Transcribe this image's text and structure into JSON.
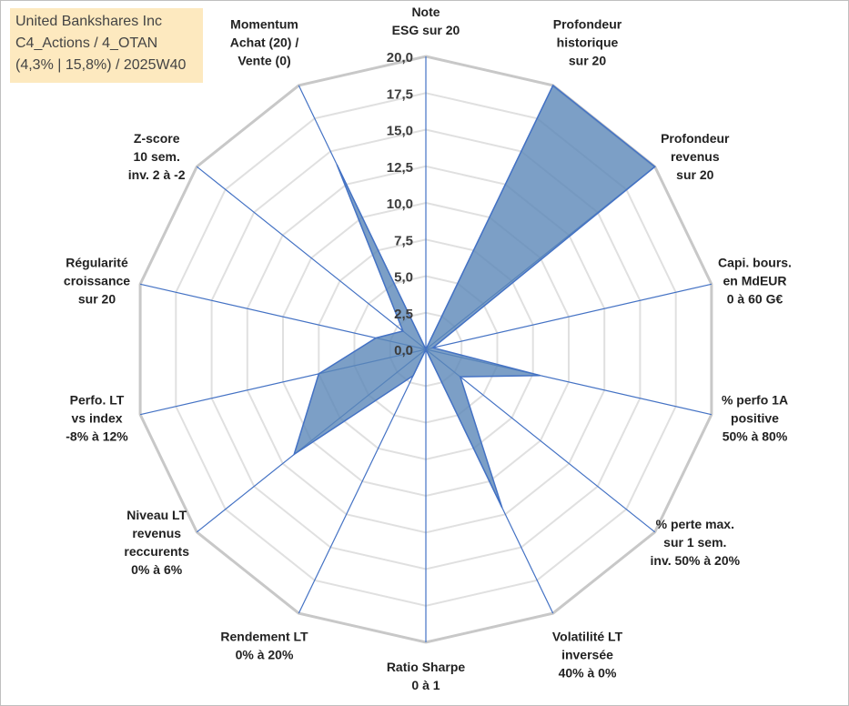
{
  "title_box": {
    "line1": "United Bankshares Inc",
    "line2": "C4_Actions / 4_OTAN",
    "line3": "(4,3% | 15,8%) / 2025W40"
  },
  "chart_data": {
    "type": "radar",
    "scale": {
      "min": 0,
      "max": 20,
      "step": 2.5
    },
    "tick_labels": [
      "0,0",
      "2,5",
      "5,0",
      "7,5",
      "10,0",
      "12,5",
      "15,0",
      "17,5",
      "20,0"
    ],
    "axes": [
      {
        "label": [
          "Note",
          "ESG sur 20"
        ],
        "value": 0
      },
      {
        "label": [
          "Profondeur",
          "historique",
          "sur 20"
        ],
        "value": 20
      },
      {
        "label": [
          "Profondeur",
          "revenus",
          "sur 20"
        ],
        "value": 20
      },
      {
        "label": [
          "Capi. bours.",
          "en MdEUR",
          "0 à 60 G€"
        ],
        "value": 0.5
      },
      {
        "label": [
          "% perfo 1A",
          "positive",
          "50% à 80%"
        ],
        "value": 8
      },
      {
        "label": [
          "% perte max.",
          "sur 1 sem.",
          "inv. 50% à 20%"
        ],
        "value": 3
      },
      {
        "label": [
          "Volatilité LT",
          "inversée",
          "40% à 0%"
        ],
        "value": 12
      },
      {
        "label": [
          "Ratio Sharpe",
          "0 à 1"
        ],
        "value": 0
      },
      {
        "label": [
          "Rendement LT",
          "0% à 20%"
        ],
        "value": 2
      },
      {
        "label": [
          "Niveau LT",
          "revenus",
          "reccurents",
          "0% à 6%"
        ],
        "value": 11.5
      },
      {
        "label": [
          "Perfo. LT",
          "vs index",
          "-8% à 12%"
        ],
        "value": 7.5
      },
      {
        "label": [
          "Régularité",
          "croissance",
          "sur 20"
        ],
        "value": 3.5
      },
      {
        "label": [
          "Z-score",
          "10 sem.",
          "inv. 2 à -2"
        ],
        "value": 2
      },
      {
        "label": [
          "Momentum",
          "Achat (20) /",
          "Vente (0)"
        ],
        "value": 14
      }
    ],
    "colors": {
      "fill": "#5b87b8",
      "fill_opacity": "0.8",
      "stroke": "#4472c4",
      "grid": "#c8c8c8",
      "web": "#e0e0e0"
    }
  }
}
